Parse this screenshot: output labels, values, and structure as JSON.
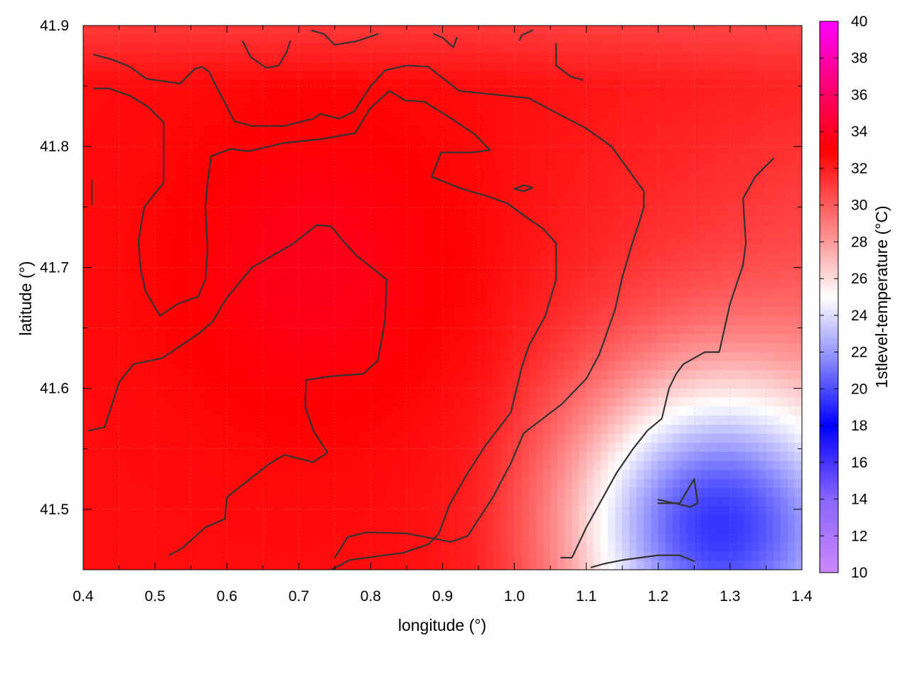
{
  "chart_data": {
    "type": "heatmap",
    "xlabel": "longitude (°)",
    "ylabel": "latitude (°)",
    "colorbar_label": "1stlevel-temperature (°C)",
    "xlim": [
      0.4,
      1.4
    ],
    "ylim": [
      41.45,
      41.9
    ],
    "x_ticks": [
      "0.4",
      "0.5",
      "0.6",
      "0.7",
      "0.8",
      "0.9",
      "1.0",
      "1.1",
      "1.2",
      "1.3",
      "1.4"
    ],
    "y_ticks": [
      "41.5",
      "41.6",
      "41.7",
      "41.8",
      "41.9"
    ],
    "colorbar_range": [
      10,
      40
    ],
    "colorbar_ticks": [
      "10",
      "12",
      "14",
      "16",
      "18",
      "20",
      "22",
      "24",
      "26",
      "28",
      "30",
      "32",
      "34",
      "36",
      "38",
      "40"
    ],
    "colorbar_stops": [
      {
        "value": 10,
        "color": "#cc88ff"
      },
      {
        "value": 14,
        "color": "#8866ff"
      },
      {
        "value": 18,
        "color": "#0000ff"
      },
      {
        "value": 22,
        "color": "#9999ff"
      },
      {
        "value": 25,
        "color": "#ffffff"
      },
      {
        "value": 28,
        "color": "#ff9999"
      },
      {
        "value": 33,
        "color": "#ff0000"
      },
      {
        "value": 37,
        "color": "#ff0088"
      },
      {
        "value": 40,
        "color": "#ff00ff"
      }
    ],
    "grid": true,
    "field_description": "Temperature mostly 30-34 °C (red) over the north and west; cooler 21-25 °C (blue/white) in the south-east corner",
    "contours": [
      [
        [
          0.415,
          41.876
        ],
        [
          0.44,
          41.872
        ],
        [
          0.465,
          41.866
        ],
        [
          0.488,
          41.856
        ],
        [
          0.535,
          41.852
        ],
        [
          0.555,
          41.864
        ],
        [
          0.565,
          41.866
        ],
        [
          0.575,
          41.862
        ],
        [
          0.585,
          41.85
        ],
        [
          0.6,
          41.833
        ],
        [
          0.61,
          41.821
        ],
        [
          0.635,
          41.817
        ],
        [
          0.68,
          41.817
        ],
        [
          0.72,
          41.823
        ],
        [
          0.73,
          41.827
        ],
        [
          0.756,
          41.823
        ],
        [
          0.777,
          41.829
        ],
        [
          0.8,
          41.85
        ],
        [
          0.82,
          41.863
        ],
        [
          0.85,
          41.867
        ],
        [
          0.88,
          41.866
        ],
        [
          0.923,
          41.846
        ],
        [
          1.02,
          41.84
        ],
        [
          1.045,
          41.832
        ],
        [
          1.1,
          41.815
        ],
        [
          1.135,
          41.8
        ],
        [
          1.167,
          41.774
        ],
        [
          1.18,
          41.763
        ],
        [
          1.18,
          41.75
        ],
        [
          1.175,
          41.74
        ],
        [
          1.163,
          41.718
        ],
        [
          1.15,
          41.692
        ],
        [
          1.14,
          41.665
        ],
        [
          1.118,
          41.628
        ],
        [
          1.1,
          41.608
        ],
        [
          1.066,
          41.587
        ],
        [
          1.013,
          41.563
        ],
        [
          0.995,
          41.538
        ],
        [
          0.97,
          41.51
        ],
        [
          0.935,
          41.478
        ],
        [
          0.912,
          41.473
        ],
        [
          0.85,
          41.48
        ],
        [
          0.795,
          41.481
        ],
        [
          0.768,
          41.477
        ],
        [
          0.75,
          41.46
        ]
      ],
      [
        [
          0.415,
          41.848
        ],
        [
          0.436,
          41.848
        ],
        [
          0.465,
          41.842
        ],
        [
          0.49,
          41.833
        ],
        [
          0.512,
          41.82
        ],
        [
          0.512,
          41.77
        ],
        [
          0.485,
          41.75
        ],
        [
          0.477,
          41.722
        ],
        [
          0.48,
          41.698
        ],
        [
          0.487,
          41.68
        ],
        [
          0.507,
          41.66
        ],
        [
          0.532,
          41.67
        ],
        [
          0.56,
          41.676
        ],
        [
          0.57,
          41.69
        ],
        [
          0.573,
          41.715
        ],
        [
          0.57,
          41.75
        ],
        [
          0.573,
          41.77
        ],
        [
          0.578,
          41.792
        ],
        [
          0.605,
          41.798
        ],
        [
          0.63,
          41.796
        ],
        [
          0.68,
          41.803
        ],
        [
          0.73,
          41.806
        ],
        [
          0.778,
          41.811
        ],
        [
          0.8,
          41.832
        ],
        [
          0.826,
          41.846
        ],
        [
          0.848,
          41.838
        ],
        [
          0.875,
          41.837
        ],
        [
          0.91,
          41.824
        ],
        [
          0.945,
          41.81
        ],
        [
          0.966,
          41.797
        ],
        [
          0.94,
          41.795
        ],
        [
          0.898,
          41.795
        ],
        [
          0.885,
          41.775
        ],
        [
          0.927,
          41.765
        ],
        [
          0.962,
          41.759
        ],
        [
          0.99,
          41.753
        ],
        [
          1.018,
          41.741
        ],
        [
          1.04,
          41.732
        ],
        [
          1.058,
          41.72
        ],
        [
          1.058,
          41.69
        ],
        [
          1.043,
          41.66
        ],
        [
          1.02,
          41.635
        ],
        [
          1.01,
          41.617
        ],
        [
          0.995,
          41.58
        ],
        [
          0.96,
          41.553
        ],
        [
          0.935,
          41.53
        ],
        [
          0.91,
          41.504
        ],
        [
          0.895,
          41.48
        ],
        [
          0.88,
          41.471
        ],
        [
          0.845,
          41.464
        ],
        [
          0.795,
          41.46
        ],
        [
          0.77,
          41.458
        ],
        [
          0.755,
          41.453
        ],
        [
          0.745,
          41.45
        ]
      ],
      [
        [
          0.408,
          41.565
        ],
        [
          0.43,
          41.568
        ],
        [
          0.45,
          41.605
        ],
        [
          0.47,
          41.62
        ],
        [
          0.51,
          41.625
        ],
        [
          0.56,
          41.645
        ],
        [
          0.58,
          41.655
        ],
        [
          0.6,
          41.675
        ],
        [
          0.635,
          41.7
        ],
        [
          0.67,
          41.712
        ],
        [
          0.693,
          41.72
        ],
        [
          0.725,
          41.735
        ],
        [
          0.745,
          41.734
        ],
        [
          0.76,
          41.723
        ],
        [
          0.78,
          41.71
        ],
        [
          0.822,
          41.69
        ],
        [
          0.82,
          41.656
        ],
        [
          0.81,
          41.623
        ],
        [
          0.79,
          41.612
        ],
        [
          0.745,
          41.61
        ],
        [
          0.71,
          41.607
        ],
        [
          0.709,
          41.585
        ],
        [
          0.72,
          41.565
        ],
        [
          0.74,
          41.547
        ],
        [
          0.72,
          41.539
        ],
        [
          0.68,
          41.545
        ],
        [
          0.66,
          41.538
        ],
        [
          0.632,
          41.525
        ],
        [
          0.6,
          41.51
        ],
        [
          0.597,
          41.492
        ],
        [
          0.57,
          41.485
        ],
        [
          0.538,
          41.468
        ],
        [
          0.52,
          41.462
        ]
      ],
      [
        [
          0.412,
          41.772
        ],
        [
          0.412,
          41.752
        ]
      ],
      [
        [
          0.622,
          41.887
        ],
        [
          0.633,
          41.874
        ],
        [
          0.655,
          41.865
        ],
        [
          0.672,
          41.867
        ],
        [
          0.683,
          41.878
        ],
        [
          0.688,
          41.887
        ]
      ],
      [
        [
          0.718,
          41.896
        ],
        [
          0.735,
          41.893
        ],
        [
          0.75,
          41.884
        ],
        [
          0.78,
          41.887
        ],
        [
          0.81,
          41.893
        ]
      ],
      [
        [
          0.888,
          41.893
        ],
        [
          0.9,
          41.89
        ],
        [
          0.915,
          41.882
        ],
        [
          0.92,
          41.89
        ]
      ],
      [
        [
          1.058,
          41.885
        ],
        [
          1.058,
          41.867
        ],
        [
          1.078,
          41.858
        ],
        [
          1.095,
          41.855
        ]
      ],
      [
        [
          1.36,
          41.79
        ],
        [
          1.335,
          41.775
        ],
        [
          1.318,
          41.757
        ],
        [
          1.322,
          41.72
        ],
        [
          1.318,
          41.702
        ],
        [
          1.3,
          41.67
        ],
        [
          1.285,
          41.63
        ],
        [
          1.265,
          41.63
        ],
        [
          1.235,
          41.62
        ],
        [
          1.225,
          41.612
        ],
        [
          1.215,
          41.6
        ],
        [
          1.205,
          41.575
        ],
        [
          1.185,
          41.565
        ],
        [
          1.165,
          41.55
        ],
        [
          1.142,
          41.53
        ],
        [
          1.1,
          41.485
        ],
        [
          1.08,
          41.46
        ],
        [
          1.065,
          41.46
        ]
      ],
      [
        [
          1.107,
          41.452
        ],
        [
          1.125,
          41.455
        ],
        [
          1.15,
          41.458
        ],
        [
          1.175,
          41.46
        ],
        [
          1.2,
          41.462
        ],
        [
          1.23,
          41.462
        ],
        [
          1.25,
          41.457
        ]
      ],
      [
        [
          1.1999,
          41.505
        ],
        [
          1.23,
          41.505
        ],
        [
          1.25,
          41.525
        ],
        [
          1.255,
          41.505
        ],
        [
          1.245,
          41.502
        ],
        [
          1.2,
          41.508
        ]
      ],
      [
        [
          1.0,
          41.765
        ],
        [
          1.013,
          41.768
        ],
        [
          1.025,
          41.766
        ],
        [
          1.013,
          41.763
        ],
        [
          1.0,
          41.765
        ]
      ],
      [
        [
          1.007,
          41.888
        ],
        [
          1.01,
          41.892
        ],
        [
          1.025,
          41.896
        ]
      ]
    ]
  }
}
